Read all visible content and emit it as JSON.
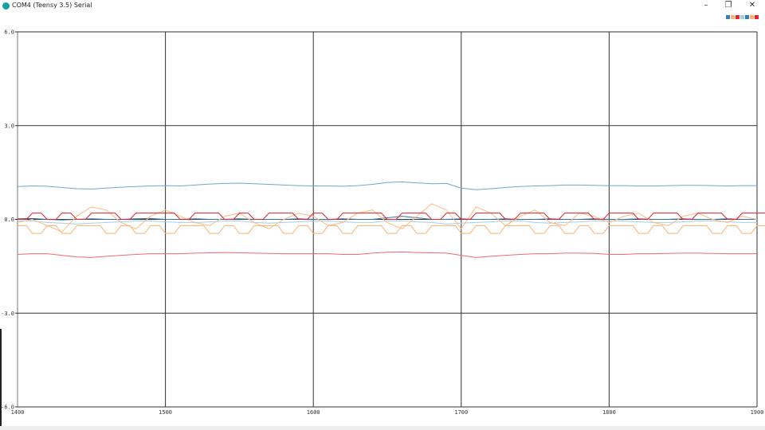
{
  "window": {
    "title": "COM4 (Teensy 3.5) Serial",
    "minimize": "–",
    "restore": "❐",
    "close": "✕"
  },
  "legend_colors": [
    "#2f7ebf",
    "#fbb06d",
    "#e8202a",
    "#a6cee3",
    "#2f7ebf",
    "#fbb06d",
    "#e8202a"
  ],
  "chart_data": {
    "type": "line",
    "xlim": [
      1400,
      1900
    ],
    "ylim": [
      -6.0,
      6.0
    ],
    "xticks": [
      "1400",
      "1500",
      "1600",
      "1700",
      "1800",
      "1900"
    ],
    "yticks": [
      "6.0",
      "3.0",
      "0.0",
      "-3.0",
      "-6.0"
    ],
    "grid": true,
    "x_start": 1400,
    "x_step": 10,
    "series": [
      {
        "color": "#6fa8d0",
        "style": "smooth",
        "values": [
          1.05,
          1.07,
          1.06,
          1.02,
          0.98,
          0.97,
          1.0,
          1.03,
          1.05,
          1.07,
          1.08,
          1.07,
          1.1,
          1.13,
          1.15,
          1.16,
          1.14,
          1.12,
          1.1,
          1.08,
          1.07,
          1.07,
          1.06,
          1.08,
          1.12,
          1.18,
          1.2,
          1.17,
          1.14,
          1.15,
          1.0,
          0.95,
          0.98,
          1.02,
          1.05,
          1.07,
          1.08,
          1.1,
          1.1,
          1.09,
          1.08,
          1.08,
          1.07,
          1.07,
          1.08,
          1.09,
          1.09,
          1.08,
          1.07,
          1.08,
          1.08
        ]
      },
      {
        "color": "#ef6b6f",
        "style": "smooth",
        "values": [
          -1.12,
          -1.1,
          -1.1,
          -1.15,
          -1.2,
          -1.22,
          -1.18,
          -1.15,
          -1.12,
          -1.1,
          -1.1,
          -1.1,
          -1.08,
          -1.07,
          -1.06,
          -1.07,
          -1.08,
          -1.09,
          -1.1,
          -1.1,
          -1.1,
          -1.1,
          -1.12,
          -1.12,
          -1.08,
          -1.05,
          -1.04,
          -1.06,
          -1.07,
          -1.08,
          -1.15,
          -1.22,
          -1.18,
          -1.15,
          -1.12,
          -1.1,
          -1.1,
          -1.08,
          -1.08,
          -1.09,
          -1.12,
          -1.12,
          -1.1,
          -1.1,
          -1.09,
          -1.08,
          -1.08,
          -1.09,
          -1.1,
          -1.1,
          -1.1
        ]
      },
      {
        "color": "#a6cee3",
        "style": "smooth",
        "values": [
          -0.05,
          -0.05,
          -0.1,
          -0.12,
          -0.15,
          -0.12,
          -0.1,
          -0.08,
          -0.05,
          -0.05,
          -0.08,
          -0.1,
          -0.1,
          -0.08,
          -0.05,
          -0.05,
          -0.1,
          -0.12,
          -0.1,
          -0.08,
          -0.05,
          -0.05,
          -0.08,
          -0.1,
          -0.1,
          -0.05,
          -0.05,
          -0.08,
          -0.1,
          -0.15,
          -0.12,
          -0.1,
          -0.08,
          -0.05,
          -0.05,
          -0.1,
          -0.12,
          -0.1,
          -0.08,
          -0.05,
          -0.05,
          -0.05,
          -0.08,
          -0.1,
          -0.1,
          -0.08,
          -0.05,
          -0.05,
          -0.08,
          -0.1,
          -0.1
        ]
      },
      {
        "color": "#3b6fa8",
        "style": "smooth",
        "values": [
          0.02,
          0.03,
          0.0,
          -0.02,
          0.0,
          0.02,
          0.0,
          0.0,
          0.02,
          0.03,
          0.0,
          0.0,
          0.02,
          0.0,
          0.0,
          0.02,
          0.0,
          0.0,
          0.0,
          0.02,
          0.0,
          0.0,
          0.02,
          0.0,
          0.0,
          0.05,
          0.1,
          0.05,
          0.0,
          0.0,
          0.02,
          0.0,
          0.0,
          0.02,
          0.0,
          0.0,
          0.02,
          0.0,
          0.0,
          0.02,
          0.0,
          0.0,
          0.02,
          0.0,
          0.0,
          0.02,
          0.0,
          0.0,
          0.02,
          0.0,
          0.0
        ]
      },
      {
        "color": "#fdbb80",
        "style": "smooth",
        "values": [
          -0.1,
          0.0,
          -0.2,
          -0.4,
          0.1,
          0.4,
          0.3,
          -0.1,
          -0.3,
          0.1,
          0.3,
          0.1,
          -0.1,
          -0.2,
          0.1,
          0.2,
          -0.1,
          -0.3,
          0.0,
          0.2,
          0.1,
          -0.2,
          -0.1,
          0.2,
          0.3,
          -0.1,
          -0.3,
          0.1,
          0.5,
          0.3,
          -0.3,
          0.4,
          0.2,
          -0.2,
          0.1,
          0.3,
          -0.1,
          -0.2,
          0.2,
          0.1,
          -0.1,
          0.1,
          0.2,
          -0.1,
          -0.2,
          0.1,
          0.2,
          0.0,
          -0.1,
          0.1,
          0.0
        ]
      },
      {
        "color": "#fbb06d",
        "style": "pulse",
        "values": [
          -0.2,
          -0.45,
          -0.2,
          -0.45,
          -0.2,
          -0.2,
          -0.45,
          -0.2,
          -0.45,
          -0.2,
          -0.45,
          -0.2,
          -0.2,
          -0.45,
          -0.2,
          -0.45,
          -0.2,
          -0.2,
          -0.45,
          -0.2,
          -0.45,
          -0.2,
          -0.45,
          -0.2,
          -0.2,
          -0.45,
          -0.2,
          -0.45,
          -0.2,
          -0.2,
          -0.45,
          -0.2,
          -0.45,
          -0.2,
          -0.2,
          -0.45,
          -0.2,
          -0.45,
          -0.2,
          -0.45,
          -0.2,
          -0.2,
          -0.45,
          -0.2,
          -0.45,
          -0.2,
          -0.2,
          -0.45,
          -0.2,
          -0.45,
          -0.2
        ]
      },
      {
        "color": "#e8202a",
        "style": "pulse",
        "values": [
          0.0,
          0.2,
          0.0,
          0.2,
          0.0,
          0.2,
          0.2,
          0.0,
          0.2,
          0.2,
          0.2,
          0.0,
          0.2,
          0.2,
          0.0,
          0.2,
          0.0,
          0.2,
          0.2,
          0.0,
          0.2,
          0.0,
          0.2,
          0.2,
          0.2,
          0.0,
          0.2,
          0.2,
          0.0,
          0.2,
          0.0,
          0.2,
          0.2,
          0.0,
          0.2,
          0.2,
          0.0,
          0.2,
          0.2,
          0.0,
          0.2,
          0.2,
          0.0,
          0.2,
          0.2,
          0.0,
          0.2,
          0.2,
          0.0,
          0.2,
          0.2
        ]
      }
    ]
  }
}
